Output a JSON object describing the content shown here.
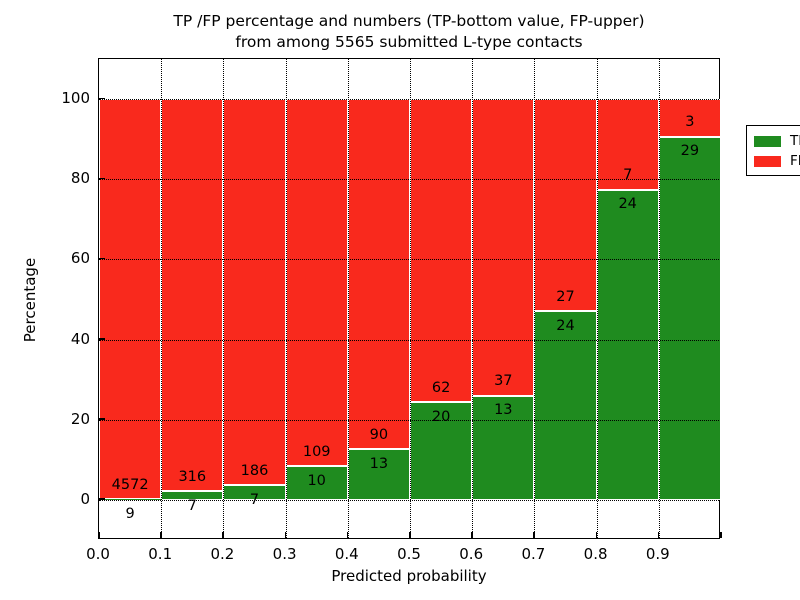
{
  "figure": {
    "title_line1": "TP /FP percentage and numbers (TP-bottom value, FP-upper)",
    "title_line2": "from among 5565 submitted L-type contacts",
    "xlabel": "Predicted probability",
    "ylabel": "Percentage"
  },
  "legend": {
    "position": "upper-right",
    "items": [
      {
        "label": "TP",
        "color": "#1f8b1f"
      },
      {
        "label": "FP",
        "color": "#f9291d"
      }
    ]
  },
  "chart_data": {
    "type": "bar",
    "stacked": true,
    "normalized_to_percent": true,
    "title": "TP /FP percentage and numbers (TP-bottom value, FP-upper) from among 5565 submitted L-type contacts",
    "xlabel": "Predicted probability",
    "ylabel": "Percentage",
    "xlim": [
      0.0,
      1.0
    ],
    "ylim": [
      -10,
      110
    ],
    "grid": "dotted, horizontal at y ticks and vertical at x ticks",
    "total_submitted": 5565,
    "bin_width": 0.1,
    "bin_edges": [
      0.0,
      0.1,
      0.2,
      0.3,
      0.4,
      0.5,
      0.6,
      0.7,
      0.8,
      0.9,
      1.0
    ],
    "x_ticks": [
      {
        "v": 0.0,
        "label": "0.0"
      },
      {
        "v": 0.1,
        "label": "0.1"
      },
      {
        "v": 0.2,
        "label": "0.2"
      },
      {
        "v": 0.3,
        "label": "0.3"
      },
      {
        "v": 0.4,
        "label": "0.4"
      },
      {
        "v": 0.5,
        "label": "0.5"
      },
      {
        "v": 0.6,
        "label": "0.6"
      },
      {
        "v": 0.7,
        "label": "0.7"
      },
      {
        "v": 0.8,
        "label": "0.8"
      },
      {
        "v": 0.9,
        "label": "0.9"
      },
      {
        "v": 1.0,
        "label": ""
      }
    ],
    "y_ticks": [
      {
        "v": 0,
        "label": "0"
      },
      {
        "v": 20,
        "label": "20"
      },
      {
        "v": 40,
        "label": "40"
      },
      {
        "v": 60,
        "label": "60"
      },
      {
        "v": 80,
        "label": "80"
      },
      {
        "v": 100,
        "label": "100"
      }
    ],
    "series": [
      {
        "name": "TP",
        "color": "#1f8b1f",
        "counts": [
          9,
          7,
          7,
          10,
          13,
          20,
          13,
          24,
          24,
          29
        ]
      },
      {
        "name": "FP",
        "color": "#f9291d",
        "counts": [
          4572,
          316,
          186,
          109,
          90,
          62,
          37,
          27,
          7,
          3
        ]
      }
    ],
    "tp_percent_by_bin": [
      0.196,
      2.167,
      3.627,
      8.403,
      12.621,
      24.39,
      26.0,
      47.059,
      77.419,
      90.625
    ],
    "bar_edge_color": "#ffffff"
  }
}
